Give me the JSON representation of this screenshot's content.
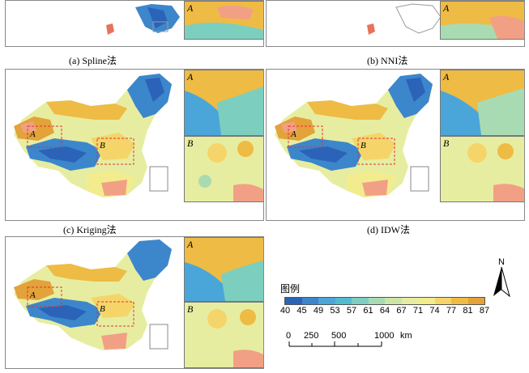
{
  "panels": {
    "a": {
      "caption": "(a) Spline法"
    },
    "b": {
      "caption": "(b) NNI法"
    },
    "c": {
      "caption": "(c)  Kriging法"
    },
    "d": {
      "caption": "(d) IDW法"
    },
    "e": {
      "caption": ""
    }
  },
  "inset_labels": {
    "a": "A",
    "b": "B"
  },
  "legend": {
    "title": "图例",
    "values": [
      "40",
      "45",
      "49",
      "53",
      "57",
      "61",
      "64",
      "67",
      "71",
      "74",
      "77",
      "81",
      "87"
    ],
    "colors": [
      "#2b63b8",
      "#3c86cc",
      "#4aa6d9",
      "#52bccf",
      "#7ccfbf",
      "#a9dbb3",
      "#cde6a8",
      "#e7eda0",
      "#f3ec8e",
      "#f5d56a",
      "#eebb45",
      "#e3a23a",
      "#f2a085"
    ]
  },
  "scale": {
    "ticks": [
      "0",
      "250",
      "500",
      "1000"
    ],
    "unit": "km"
  },
  "north_label": "N"
}
